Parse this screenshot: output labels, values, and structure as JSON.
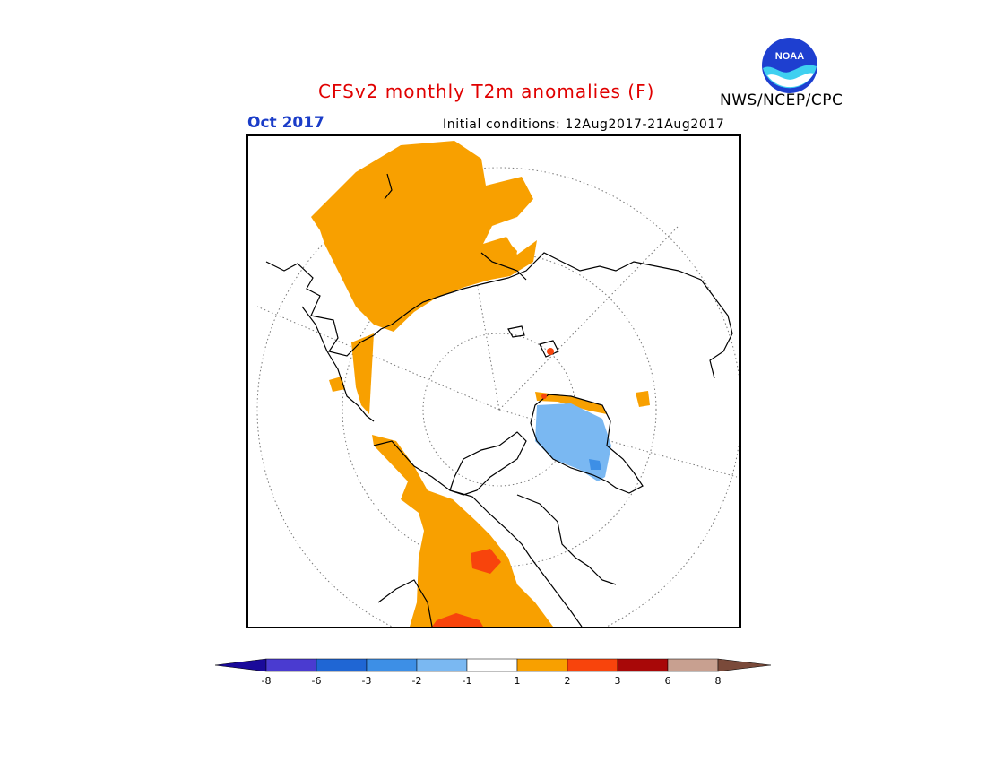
{
  "header": {
    "title": "CFSv2 monthly T2m anomalies (F)",
    "month": "Oct 2017",
    "initial_conditions": "Initial conditions: 12Aug2017-21Aug2017",
    "agency": "NWS/NCEP/CPC",
    "logo_text": "NOAA"
  },
  "colorbar": {
    "levels": [
      "-8",
      "-6",
      "-3",
      "-2",
      "-1",
      "1",
      "2",
      "3",
      "6",
      "8"
    ],
    "colors": [
      "#1a0a9a",
      "#4a3bd0",
      "#1f66d4",
      "#3d8fe6",
      "#7ab8f2",
      "#ffffff",
      "#f8a000",
      "#f8440c",
      "#a80808",
      "#c8a090",
      "#7a4a3a"
    ]
  },
  "map": {
    "projection": "north-polar-stereographic",
    "anomaly_colors": {
      "warm_1_2": "#f8a000",
      "warm_2_3": "#f8440c",
      "cool_m1_m2": "#7ab8f2",
      "cool_m2_m3": "#3d8fe6"
    }
  }
}
